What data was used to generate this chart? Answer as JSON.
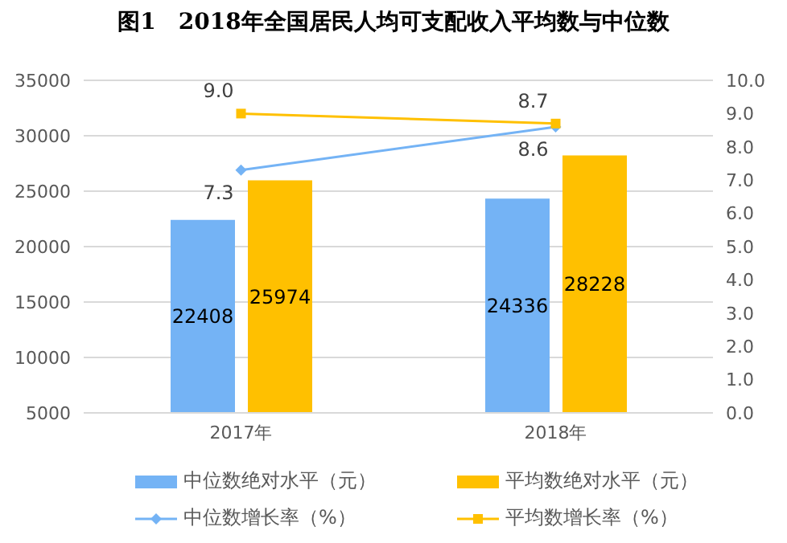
{
  "chart_data": {
    "type": "bar",
    "title": "图1　2018年全国居民人均可支配收入平均数与中位数",
    "categories": [
      "2017年",
      "2018年"
    ],
    "series": [
      {
        "name": "中位数绝对水平（元）",
        "color": "#74b3f5",
        "values": [
          22408,
          24336
        ]
      },
      {
        "name": "平均数绝对水平（元）",
        "color": "#ffc000",
        "values": [
          25974,
          28228
        ]
      },
      {
        "name": "中位数增长率（%）",
        "type": "line",
        "axis": "y2",
        "color": "#74b3f5",
        "marker": "diamond",
        "values": [
          7.3,
          8.6
        ],
        "value_labels": [
          "7.3",
          "8.6"
        ]
      },
      {
        "name": "平均数增长率（%）",
        "type": "line",
        "axis": "y2",
        "color": "#ffc000",
        "marker": "square",
        "values": [
          9.0,
          8.7
        ],
        "value_labels": [
          "9.0",
          "8.7"
        ]
      }
    ],
    "ylim": [
      5000,
      35000
    ],
    "yticks": [
      5000,
      10000,
      15000,
      20000,
      25000,
      30000,
      35000
    ],
    "y2lim": [
      0,
      10
    ],
    "y2ticks": [
      {
        "value": 0,
        "label": "0.0"
      },
      {
        "value": 1,
        "label": "1.0"
      },
      {
        "value": 2,
        "label": "2.0"
      },
      {
        "value": 3,
        "label": "3.0"
      },
      {
        "value": 4,
        "label": "4.0"
      },
      {
        "value": 5,
        "label": "5.0"
      },
      {
        "value": 6,
        "label": "6.0"
      },
      {
        "value": 7,
        "label": "7.0"
      },
      {
        "value": 8,
        "label": "8.0"
      },
      {
        "value": 9,
        "label": "9.0"
      },
      {
        "value": 10,
        "label": "10.0"
      }
    ],
    "grid": "y",
    "legend": "bottom",
    "data_labels": true
  }
}
